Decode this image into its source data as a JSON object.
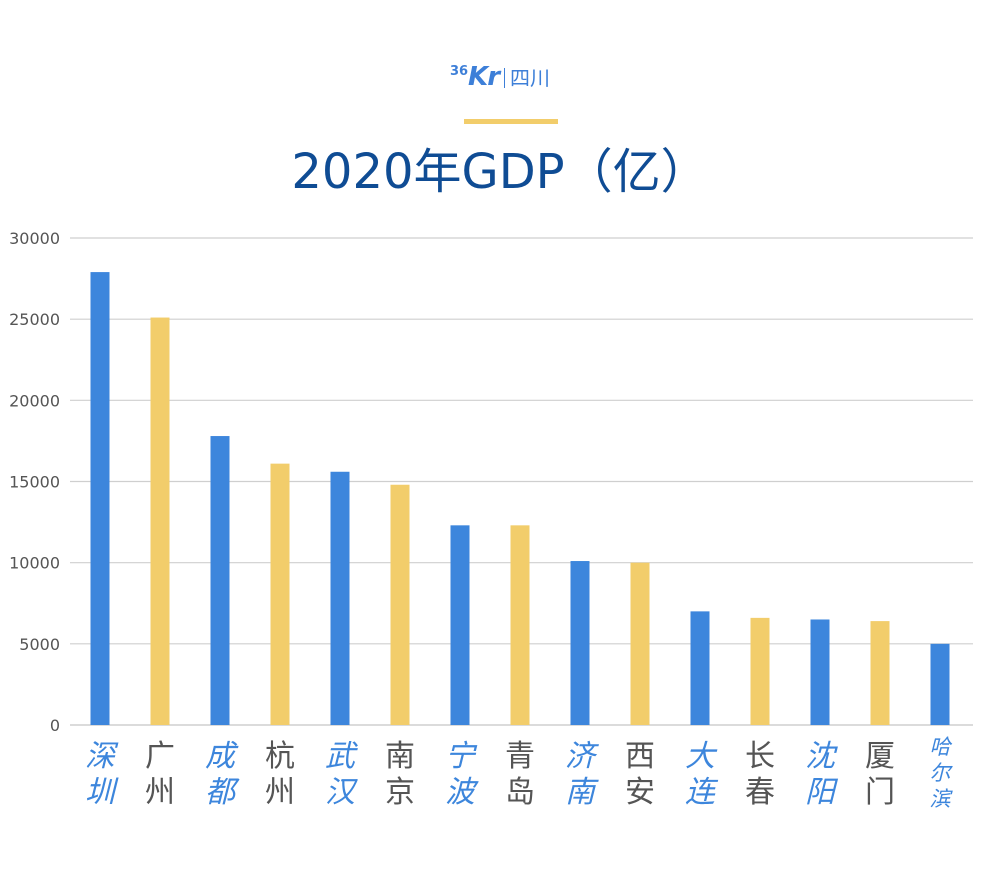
{
  "logo": {
    "num": "36",
    "kr": "Kr",
    "sub": "四川"
  },
  "chart_data": {
    "type": "bar",
    "title": "2020年GDP（亿）",
    "xlabel": "",
    "ylabel": "",
    "ylim": [
      0,
      30000
    ],
    "yticks": [
      0,
      5000,
      10000,
      15000,
      20000,
      25000,
      30000
    ],
    "grid": true,
    "categories": [
      "深圳",
      "广州",
      "成都",
      "杭州",
      "武汉",
      "南京",
      "宁波",
      "青岛",
      "济南",
      "西安",
      "大连",
      "长春",
      "沈阳",
      "厦门",
      "哈尔滨"
    ],
    "values": [
      27900,
      25100,
      17800,
      16100,
      15600,
      14800,
      12300,
      12300,
      10100,
      10000,
      7000,
      6600,
      6500,
      6400,
      5000
    ],
    "colors": {
      "primary": "#3d86dc",
      "secondary": "#f2cd6b",
      "label_primary": "#3d86dc",
      "label_secondary": "#555555",
      "grid": "#cfcfcf",
      "title": "#0f4c94"
    }
  }
}
